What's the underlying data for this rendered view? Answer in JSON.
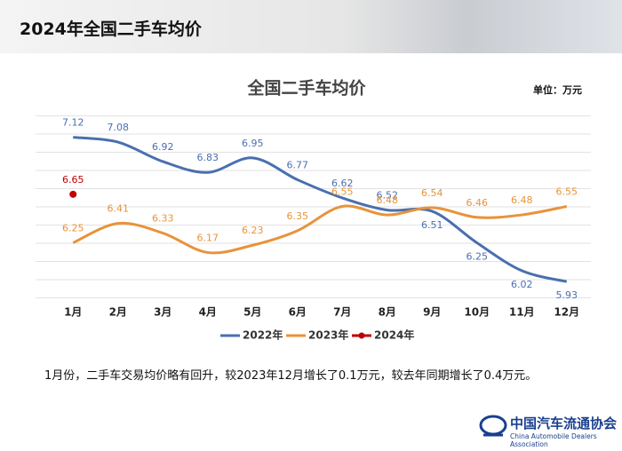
{
  "header_title": "2024年全国二手车均价",
  "chart_data": {
    "type": "line",
    "title": "全国二手车均价",
    "unit": "单位：万元",
    "categories": [
      "1月",
      "2月",
      "3月",
      "4月",
      "5月",
      "6月",
      "7月",
      "8月",
      "9月",
      "10月",
      "11月",
      "12月"
    ],
    "series": [
      {
        "name": "2022年",
        "color": "#4a6fb0",
        "values": [
          7.12,
          7.08,
          6.92,
          6.83,
          6.95,
          6.77,
          6.62,
          6.52,
          6.51,
          6.25,
          6.02,
          5.93
        ]
      },
      {
        "name": "2023年",
        "color": "#e8933a",
        "values": [
          6.25,
          6.41,
          6.33,
          6.17,
          6.23,
          6.35,
          6.55,
          6.48,
          6.54,
          6.46,
          6.48,
          6.55
        ]
      },
      {
        "name": "2024年",
        "color": "#c00000",
        "values": [
          6.65,
          null,
          null,
          null,
          null,
          null,
          null,
          null,
          null,
          null,
          null,
          null
        ]
      }
    ],
    "ylim": [
      5.8,
      7.3
    ],
    "grid": true,
    "legend": "bottom"
  },
  "note": "1月份，二手车交易均价略有回升，较2023年12月增长了0.1万元，较去年同期增长了0.4万元。",
  "logo": {
    "name": "中国汽车流通协会",
    "english": "China Automobile Dealers Association"
  }
}
